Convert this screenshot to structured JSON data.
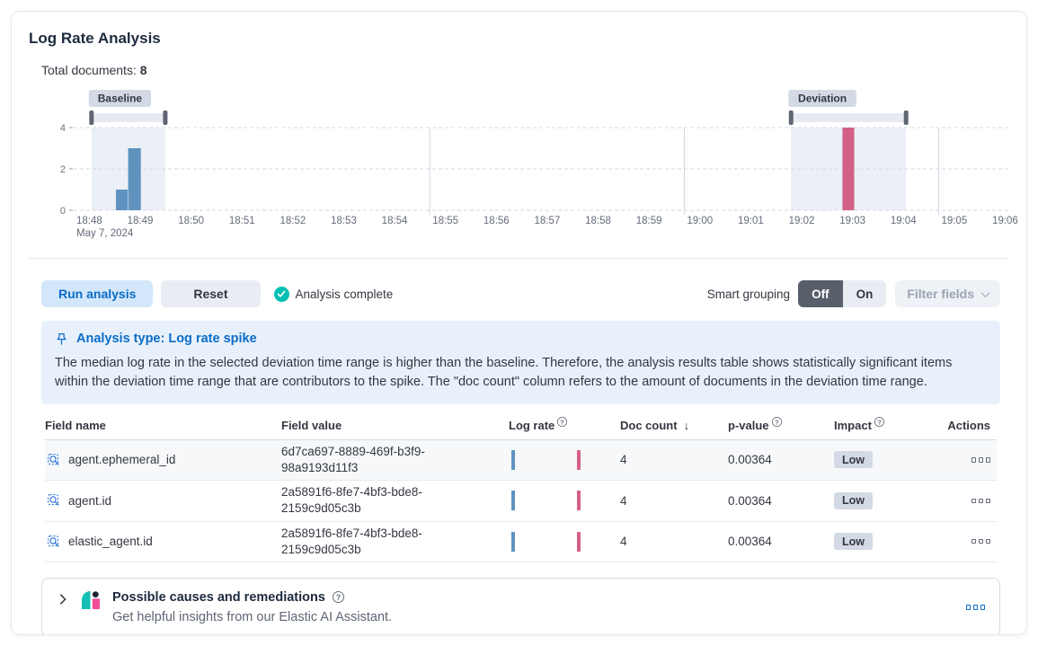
{
  "page": {
    "title": "Log Rate Analysis"
  },
  "summary": {
    "label": "Total documents:",
    "value": "8"
  },
  "chart_data": {
    "type": "bar",
    "title": "Document count histogram with baseline and deviation brushes",
    "x_domain_minutes": [
      0,
      18.37
    ],
    "x_tick_minutes": [
      0,
      1,
      2,
      3,
      4,
      5,
      6,
      7,
      8,
      9,
      10,
      11,
      12,
      13,
      14,
      15,
      16,
      17,
      18
    ],
    "x_tick_labels": [
      "18:48",
      "18:49",
      "18:50",
      "18:51",
      "18:52",
      "18:53",
      "18:54",
      "18:55",
      "18:56",
      "18:57",
      "18:58",
      "18:59",
      "19:00",
      "19:01",
      "19:02",
      "19:03",
      "19:04",
      "19:05",
      "19:06"
    ],
    "x_first_tick_sublabel": "May 7, 2024",
    "major_gridline_minutes": [
      7,
      12,
      17
    ],
    "y_ticks": [
      0,
      2,
      4
    ],
    "ylim": [
      0,
      4
    ],
    "bars": [
      {
        "start_min": 0.83,
        "end_min": 1.06,
        "value": 1,
        "series": "baseline"
      },
      {
        "start_min": 1.07,
        "end_min": 1.32,
        "value": 3,
        "series": "baseline"
      },
      {
        "start_min": 15.11,
        "end_min": 15.34,
        "value": 4,
        "series": "deviation"
      }
    ],
    "brushes": [
      {
        "label": "Baseline",
        "start_min": 0.35,
        "end_min": 1.8
      },
      {
        "label": "Deviation",
        "start_min": 14.1,
        "end_min": 16.36
      }
    ],
    "series_colors": {
      "baseline": "#6092C0",
      "deviation": "#D36086"
    },
    "region_fill": "#dbe1ee"
  },
  "controls": {
    "run_button": "Run analysis",
    "reset_button": "Reset",
    "status": "Analysis complete",
    "smart_grouping_label": "Smart grouping",
    "grouping_off": "Off",
    "grouping_on": "On",
    "filter_fields_button": "Filter fields"
  },
  "callout": {
    "title": "Analysis type: Log rate spike",
    "body": "The median log rate in the selected deviation time range is higher than the baseline. Therefore, the analysis results table shows statistically significant items within the deviation time range that are contributors to the spike. The \"doc count\" column refers to the amount of documents in the deviation time range."
  },
  "table": {
    "headers": {
      "field_name": "Field name",
      "field_value": "Field value",
      "log_rate": "Log rate",
      "doc_count": "Doc count",
      "p_value": "p-value",
      "impact": "Impact",
      "actions": "Actions"
    },
    "rows": [
      {
        "field_name": "agent.ephemeral_id",
        "field_value": "6d7ca697-8889-469f-b3f9-98a9193d11f3",
        "doc_count": "4",
        "p_value": "0.00364",
        "impact": "Low"
      },
      {
        "field_name": "agent.id",
        "field_value": "2a5891f6-8fe7-4bf3-bde8-2159c9d05c3b",
        "doc_count": "4",
        "p_value": "0.00364",
        "impact": "Low"
      },
      {
        "field_name": "elastic_agent.id",
        "field_value": "2a5891f6-8fe7-4bf3-bde8-2159c9d05c3b",
        "doc_count": "4",
        "p_value": "0.00364",
        "impact": "Low"
      }
    ]
  },
  "ai_panel": {
    "title": "Possible causes and remediations",
    "subtitle": "Get helpful insights from our Elastic AI Assistant."
  },
  "icons": {
    "sort_desc": "↓",
    "help": "?"
  },
  "colors": {
    "primary": "#0a6cc8",
    "success": "#00BFB3"
  }
}
